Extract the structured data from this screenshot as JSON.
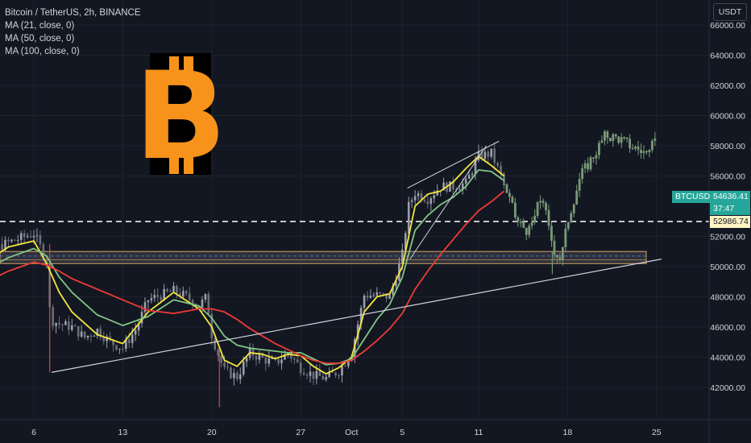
{
  "header": {
    "symbol_line": "Bitcoin / TetherUS, 2h, BINANCE",
    "indicators": [
      "MA (21, close, 0)",
      "MA (50, close, 0)",
      "MA (100, close, 0)"
    ]
  },
  "price_scale": {
    "currency": "USDT",
    "ticks": [
      {
        "value": 66000,
        "label": "66000.00"
      },
      {
        "value": 64000,
        "label": "64000.00"
      },
      {
        "value": 62000,
        "label": "62000.00"
      },
      {
        "value": 60000,
        "label": "60000.00"
      },
      {
        "value": 58000,
        "label": "58000.00"
      },
      {
        "value": 56000,
        "label": "56000.00"
      },
      {
        "value": 52000,
        "label": "52000.00"
      },
      {
        "value": 50000,
        "label": "50000.00"
      },
      {
        "value": 48000,
        "label": "48000.00"
      },
      {
        "value": 46000,
        "label": "46000.00"
      },
      {
        "value": 44000,
        "label": "44000.00"
      },
      {
        "value": 42000,
        "label": "42000.00"
      }
    ]
  },
  "last_price": {
    "symbol_tag": "BTCUSDT",
    "value": 54636.41,
    "label": "54636.41",
    "countdown": "37:47",
    "color": "#26a69a"
  },
  "level_marker": {
    "value": 52986.74,
    "label": "52986.74"
  },
  "time_axis": {
    "ticks": [
      {
        "day": 6,
        "label": "6"
      },
      {
        "day": 13,
        "label": "13"
      },
      {
        "day": 20,
        "label": "20"
      },
      {
        "day": 27,
        "label": "27"
      },
      {
        "day": 31,
        "label": "Oct"
      },
      {
        "day": 35,
        "label": "5"
      },
      {
        "day": 41,
        "label": "11"
      },
      {
        "day": 48,
        "label": "18"
      },
      {
        "day": 55,
        "label": "25"
      }
    ]
  },
  "colors": {
    "background": "#131722",
    "grid": "#1e222d",
    "ma21": "#f5e63d",
    "ma50": "#81c784",
    "ma100": "#ef3b36",
    "candle": "#8c909c",
    "projection": "#7a9a78",
    "band_fill": "#434651",
    "band_edge": "#b8915a",
    "trendline": "#d1d4dc",
    "logo": "#f7931a"
  },
  "logo": {
    "name": "bitcoin-logo",
    "letter": "B"
  },
  "chart_data": {
    "type": "line",
    "x_unit": "day (Sep 1 = 1, Oct 1 = 31)",
    "ylim": [
      40500,
      67000
    ],
    "xlim": [
      0,
      58
    ],
    "series": [
      {
        "name": "MA (21, close, 0)",
        "color": "#f5e63d",
        "x": [
          0,
          2,
          4,
          6,
          7,
          8,
          9,
          11,
          13,
          15,
          17,
          19,
          20,
          21,
          22,
          23,
          24,
          25,
          26,
          27,
          28,
          29,
          30,
          31,
          32,
          33,
          34,
          35,
          36,
          37,
          38,
          39,
          40,
          41,
          42,
          43
        ],
        "y": [
          49500,
          50200,
          51300,
          51700,
          50200,
          48300,
          47000,
          45500,
          44900,
          47000,
          48300,
          47200,
          46000,
          43800,
          43400,
          44300,
          44200,
          43900,
          44200,
          44100,
          43400,
          42900,
          43300,
          44000,
          47000,
          48000,
          48200,
          50000,
          54000,
          54800,
          55000,
          55600,
          56500,
          57300,
          56700,
          56000
        ]
      },
      {
        "name": "MA (50, close, 0)",
        "color": "#81c784",
        "x": [
          0,
          2,
          4,
          6,
          7,
          8,
          9,
          11,
          13,
          15,
          17,
          19,
          20,
          21,
          22,
          23,
          24,
          25,
          26,
          27,
          28,
          29,
          30,
          31,
          32,
          33,
          34,
          35,
          36,
          37,
          38,
          39,
          40,
          41,
          42,
          43
        ],
        "y": [
          49000,
          49700,
          50600,
          51200,
          50700,
          49300,
          48300,
          46800,
          46100,
          46700,
          47800,
          47400,
          46600,
          45400,
          44800,
          44600,
          44500,
          44400,
          44300,
          44300,
          43900,
          43500,
          43600,
          43900,
          45200,
          46500,
          47500,
          49300,
          52400,
          53400,
          54100,
          54600,
          55300,
          56400,
          56300,
          55700
        ]
      },
      {
        "name": "MA (100, close, 0)",
        "color": "#ef3b36",
        "x": [
          0,
          2,
          4,
          6,
          7,
          8,
          9,
          11,
          13,
          15,
          17,
          19,
          20,
          21,
          22,
          23,
          24,
          25,
          26,
          27,
          28,
          29,
          30,
          31,
          32,
          33,
          34,
          35,
          36,
          37,
          38,
          39,
          40,
          41,
          42,
          43
        ],
        "y": [
          48200,
          48900,
          49700,
          50300,
          50100,
          49700,
          49200,
          48500,
          47800,
          47100,
          46900,
          47200,
          47200,
          47000,
          46500,
          45900,
          45400,
          44900,
          44500,
          44100,
          43800,
          43600,
          43600,
          43800,
          44400,
          45100,
          45900,
          46900,
          48500,
          49700,
          50800,
          51800,
          52800,
          53700,
          54300,
          55000
        ]
      },
      {
        "name": "Price",
        "color": "#8c909c",
        "x": [
          0,
          1,
          2,
          3,
          4,
          5,
          6,
          7,
          7.3,
          8,
          9,
          10,
          11,
          12,
          13,
          14,
          15,
          16,
          17,
          18,
          19,
          19.6,
          20,
          20.5,
          21,
          22,
          23,
          24,
          25,
          26,
          27,
          28,
          29,
          30,
          31,
          32,
          33,
          34,
          35,
          35.5,
          36,
          37,
          38,
          39,
          40,
          41,
          42,
          43
        ],
        "y": [
          49800,
          50300,
          50800,
          51200,
          51600,
          51900,
          52200,
          50400,
          46500,
          46200,
          46000,
          45300,
          45800,
          45000,
          44600,
          45800,
          47800,
          48100,
          48400,
          48000,
          47400,
          48000,
          45500,
          44200,
          43100,
          42700,
          44300,
          43900,
          43600,
          44300,
          43300,
          42800,
          42600,
          43100,
          44300,
          48100,
          48100,
          48000,
          50800,
          54000,
          54900,
          54500,
          55300,
          55300,
          55500,
          57300,
          57500,
          55500
        ]
      },
      {
        "name": "Projection",
        "color": "#7a9a78",
        "x": [
          43,
          44,
          45,
          46,
          46.5,
          47,
          47.5,
          48,
          49,
          50,
          51,
          52,
          53,
          54,
          54.5,
          55
        ],
        "y": [
          55500,
          53000,
          52300,
          54800,
          52500,
          51000,
          50500,
          53000,
          56000,
          57300,
          58700,
          58500,
          58000,
          57600,
          57300,
          59300
        ]
      }
    ]
  }
}
